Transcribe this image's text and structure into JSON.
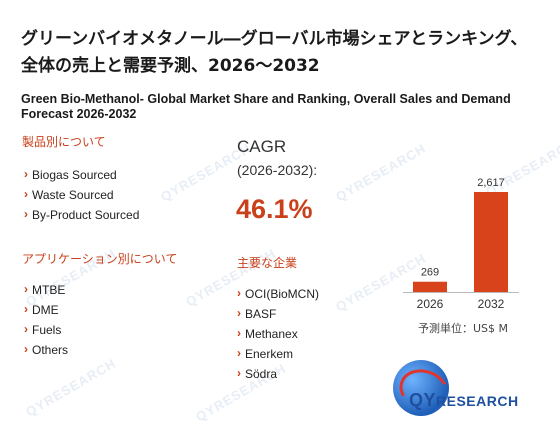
{
  "title_jp": "グリーンバイオメタノール―グローバル市場シェアとランキング、全体の売上と需要予測、2026～2032",
  "title_en": "Green Bio-Methanol- Global Market Share and Ranking, Overall Sales and Demand Forecast 2026-2032",
  "product_section": {
    "heading": "製品別について",
    "items": [
      "Biogas Sourced",
      "Waste Sourced",
      "By-Product Sourced"
    ]
  },
  "application_section": {
    "heading": "アプリケーション別について",
    "items": [
      "MTBE",
      "DME",
      "Fuels",
      "Others"
    ]
  },
  "cagr": {
    "label": "CAGR",
    "period": "(2026-2032):",
    "value": "46.1%"
  },
  "companies_section": {
    "heading": "主要な企業",
    "items": [
      "OCI(BioMCN)",
      "BASF",
      "Methanex",
      "Enerkem",
      "Södra"
    ]
  },
  "chart_data": {
    "type": "bar",
    "categories": [
      "2026",
      "2032"
    ],
    "values": [
      269,
      2617
    ],
    "value_labels": [
      "269",
      "2,617"
    ],
    "unit_label": "予測単位：US$ M",
    "bar_color": "#d9431c",
    "ylim": [
      0,
      2617
    ]
  },
  "logo": {
    "brand_q": "QY",
    "brand_r": "RESEARCH"
  },
  "watermark_text": "QYRESEARCH"
}
